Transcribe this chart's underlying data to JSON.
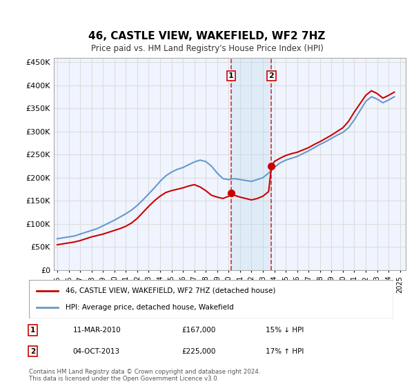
{
  "title": "46, CASTLE VIEW, WAKEFIELD, WF2 7HZ",
  "subtitle": "Price paid vs. HM Land Registry's House Price Index (HPI)",
  "legend_label1": "46, CASTLE VIEW, WAKEFIELD, WF2 7HZ (detached house)",
  "legend_label2": "HPI: Average price, detached house, Wakefield",
  "transaction1_date": "11-MAR-2010",
  "transaction1_price": "£167,000",
  "transaction1_hpi": "15% ↓ HPI",
  "transaction2_date": "04-OCT-2013",
  "transaction2_price": "£225,000",
  "transaction2_hpi": "17% ↑ HPI",
  "footer": "Contains HM Land Registry data © Crown copyright and database right 2024.\nThis data is licensed under the Open Government Licence v3.0.",
  "ylim": [
    0,
    450000
  ],
  "yticks": [
    0,
    50000,
    100000,
    150000,
    200000,
    250000,
    300000,
    350000,
    400000,
    450000
  ],
  "xlim_start": 1995.0,
  "xlim_end": 2025.5,
  "vline1_x": 2010.2,
  "vline2_x": 2013.75,
  "red_color": "#cc0000",
  "blue_color": "#6699cc",
  "background_color": "#ffffff",
  "grid_color": "#dddddd",
  "hpi_years": [
    1995,
    1995.5,
    1996,
    1996.5,
    1997,
    1997.5,
    1998,
    1998.5,
    1999,
    1999.5,
    2000,
    2000.5,
    2001,
    2001.5,
    2002,
    2002.5,
    2003,
    2003.5,
    2004,
    2004.5,
    2005,
    2005.5,
    2006,
    2006.5,
    2007,
    2007.5,
    2008,
    2008.5,
    2009,
    2009.5,
    2010,
    2010.5,
    2011,
    2011.5,
    2012,
    2012.5,
    2013,
    2013.5,
    2014,
    2014.5,
    2015,
    2015.5,
    2016,
    2016.5,
    2017,
    2017.5,
    2018,
    2018.5,
    2019,
    2019.5,
    2020,
    2020.5,
    2021,
    2021.5,
    2022,
    2022.5,
    2023,
    2023.5,
    2024,
    2024.5
  ],
  "hpi_values": [
    68000,
    70000,
    72000,
    74000,
    78000,
    82000,
    86000,
    90000,
    96000,
    102000,
    108000,
    115000,
    122000,
    130000,
    140000,
    152000,
    165000,
    178000,
    192000,
    204000,
    212000,
    218000,
    222000,
    228000,
    234000,
    238000,
    235000,
    225000,
    210000,
    198000,
    196000,
    198000,
    196000,
    194000,
    192000,
    196000,
    200000,
    210000,
    222000,
    232000,
    238000,
    242000,
    246000,
    252000,
    258000,
    265000,
    272000,
    278000,
    285000,
    292000,
    298000,
    308000,
    325000,
    345000,
    365000,
    375000,
    370000,
    362000,
    368000,
    375000
  ],
  "property_years": [
    1995.0,
    1995.5,
    1996,
    1996.5,
    1997,
    1997.5,
    1998,
    1998.5,
    1999,
    1999.5,
    2000,
    2000.5,
    2001,
    2001.5,
    2002,
    2002.5,
    2003,
    2003.5,
    2004,
    2004.5,
    2005,
    2005.5,
    2006,
    2006.5,
    2007,
    2007.5,
    2008,
    2008.5,
    2009,
    2009.5,
    2010,
    2010.2,
    2010.5,
    2011,
    2011.5,
    2012,
    2012.5,
    2013,
    2013.5,
    2013.75,
    2014,
    2014.5,
    2015,
    2015.5,
    2016,
    2016.5,
    2017,
    2017.5,
    2018,
    2018.5,
    2019,
    2019.5,
    2020,
    2020.5,
    2021,
    2021.5,
    2022,
    2022.5,
    2023,
    2023.5,
    2024,
    2024.5
  ],
  "property_values": [
    55000,
    57000,
    59000,
    61000,
    64000,
    68000,
    72000,
    75000,
    78000,
    82000,
    86000,
    90000,
    95000,
    102000,
    112000,
    125000,
    138000,
    150000,
    160000,
    168000,
    172000,
    175000,
    178000,
    182000,
    185000,
    180000,
    172000,
    162000,
    158000,
    155000,
    160000,
    167000,
    162000,
    158000,
    155000,
    152000,
    155000,
    160000,
    170000,
    225000,
    235000,
    242000,
    248000,
    252000,
    255000,
    260000,
    265000,
    272000,
    278000,
    285000,
    292000,
    300000,
    308000,
    322000,
    342000,
    360000,
    378000,
    388000,
    382000,
    372000,
    378000,
    385000
  ]
}
